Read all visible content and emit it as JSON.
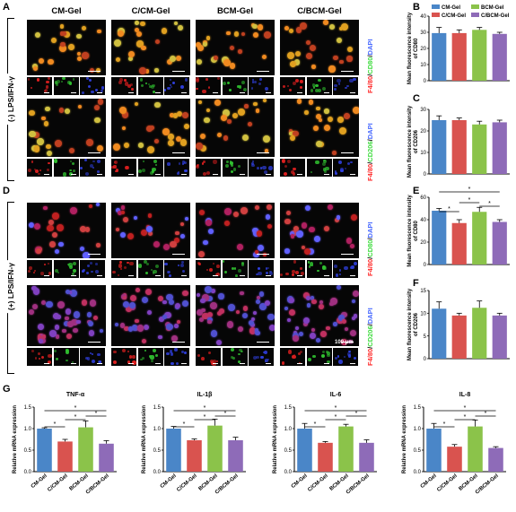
{
  "panel_labels": {
    "a": "A",
    "b": "B",
    "c": "C",
    "d": "D",
    "e": "E",
    "f": "F",
    "g": "G"
  },
  "column_headers": [
    "CM-Gel",
    "C/CM-Gel",
    "BCM-Gel",
    "C/BCM-Gel"
  ],
  "conditions": {
    "top": "(-) LPS/IFN-γ",
    "bottom": "(+) LPS/IFN-γ"
  },
  "stains": {
    "cd80": [
      "F4/80",
      "/",
      "CD80",
      "/",
      "DAPI"
    ],
    "cd206": [
      "F4/80",
      "/",
      "CD206",
      "/",
      "DAPI"
    ]
  },
  "scale_bar_label": "100 μm",
  "colors": {
    "cm": "#4a86c8",
    "ccm": "#d9534f",
    "bcm": "#8bc34a",
    "cbcm": "#8e6bb8",
    "red_stain": "#ff2a2a",
    "green_stain": "#3fdc3f",
    "blue_stain": "#4a6bff"
  },
  "legend": [
    "CM-Gel",
    "BCM-Gel",
    "C/CM-Gel",
    "C/BCM-Gel"
  ],
  "chart_data": [
    {
      "id": "B",
      "type": "bar",
      "categories": [
        "CM-Gel",
        "C/CM-Gel",
        "BCM-Gel",
        "C/BCM-Gel"
      ],
      "values": [
        29.5,
        29.5,
        31.5,
        29
      ],
      "errors": [
        3.5,
        2,
        1.5,
        1
      ],
      "ylabel": "Mean fluorescence intensity of CD80",
      "ylim": [
        0,
        40
      ],
      "yticks": [
        0,
        10,
        20,
        30,
        40
      ],
      "significance": []
    },
    {
      "id": "C",
      "type": "bar",
      "categories": [
        "CM-Gel",
        "C/CM-Gel",
        "BCM-Gel",
        "C/BCM-Gel"
      ],
      "values": [
        25,
        25,
        23,
        24
      ],
      "errors": [
        2,
        1,
        1.5,
        1
      ],
      "ylabel": "Mean fluorescence intensity of CD206",
      "ylim": [
        0,
        30
      ],
      "yticks": [
        0,
        10,
        20,
        30
      ],
      "significance": []
    },
    {
      "id": "E",
      "type": "bar",
      "categories": [
        "CM-Gel",
        "C/CM-Gel",
        "BCM-Gel",
        "C/BCM-Gel"
      ],
      "values": [
        48,
        37,
        47,
        38
      ],
      "errors": [
        2,
        3,
        4,
        2
      ],
      "ylabel": "Mean fluorescence intensity of CD80",
      "ylim": [
        0,
        60
      ],
      "yticks": [
        0,
        20,
        40,
        60
      ],
      "significance": [
        "*",
        "*",
        "*",
        "*"
      ]
    },
    {
      "id": "F",
      "type": "bar",
      "categories": [
        "CM-Gel",
        "C/CM-Gel",
        "BCM-Gel",
        "C/BCM-Gel"
      ],
      "values": [
        11,
        9.5,
        11.2,
        9.5
      ],
      "errors": [
        1.5,
        0.5,
        1.5,
        0.5
      ],
      "ylabel": "Mean fluorescence intensity of CD206",
      "ylim": [
        0,
        15
      ],
      "yticks": [
        0,
        5,
        10,
        15
      ],
      "significance": []
    },
    {
      "id": "G1",
      "type": "bar",
      "title": "TNF-α",
      "categories": [
        "CM-Gel",
        "C/CM-Gel",
        "BCM-Gel",
        "C/BCM-Gel"
      ],
      "values": [
        1.0,
        0.7,
        1.03,
        0.65
      ],
      "errors": [
        0.02,
        0.05,
        0.15,
        0.07
      ],
      "ylabel": "Relative mRNA expression",
      "ylim": [
        0,
        1.5
      ],
      "yticks": [
        "0.0",
        "0.5",
        "1.0",
        "1.5"
      ],
      "significance": [
        "*",
        "*",
        "*",
        "*"
      ]
    },
    {
      "id": "G2",
      "type": "bar",
      "title": "IL-1β",
      "categories": [
        "CM-Gel",
        "C/CM-Gel",
        "BCM-Gel",
        "C/BCM-Gel"
      ],
      "values": [
        1.0,
        0.73,
        1.07,
        0.73
      ],
      "errors": [
        0.05,
        0.03,
        0.15,
        0.07
      ],
      "ylabel": "Relative mRNA expression",
      "ylim": [
        0,
        1.5
      ],
      "yticks": [
        "0.0",
        "0.5",
        "1.0",
        "1.5"
      ],
      "significance": [
        "*",
        "*",
        "*",
        "*"
      ]
    },
    {
      "id": "G3",
      "type": "bar",
      "title": "IL-6",
      "categories": [
        "CM-Gel",
        "C/CM-Gel",
        "BCM-Gel",
        "C/BCM-Gel"
      ],
      "values": [
        1.0,
        0.67,
        1.05,
        0.67
      ],
      "errors": [
        0.12,
        0.03,
        0.05,
        0.07
      ],
      "ylabel": "Relative mRNA expression",
      "ylim": [
        0,
        1.5
      ],
      "yticks": [
        "0.0",
        "0.5",
        "1.0",
        "1.5"
      ],
      "significance": [
        "*",
        "*",
        "*",
        "*"
      ]
    },
    {
      "id": "G4",
      "type": "bar",
      "title": "IL-8",
      "categories": [
        "CM-Gel",
        "C/CM-Gel",
        "BCM-Gel",
        "C/BCM-Gel"
      ],
      "values": [
        1.0,
        0.58,
        1.05,
        0.55
      ],
      "errors": [
        0.12,
        0.05,
        0.15,
        0.03
      ],
      "ylabel": "Relative mRNA expression",
      "ylim": [
        0,
        1.5
      ],
      "yticks": [
        "0.0",
        "0.5",
        "1.0",
        "1.5"
      ],
      "significance": [
        "*",
        "*",
        "*",
        "*"
      ]
    }
  ]
}
